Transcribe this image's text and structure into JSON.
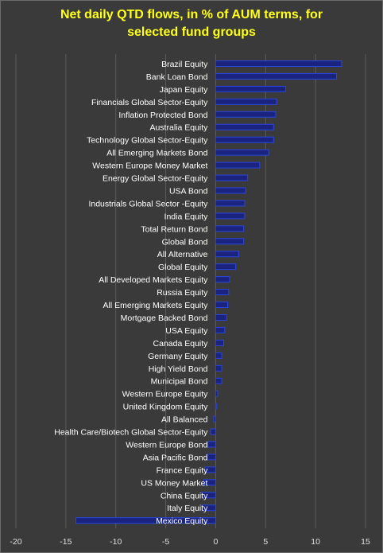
{
  "chart_data": {
    "type": "bar",
    "orientation": "horizontal",
    "title_line1": "Net daily QTD flows, in % of AUM terms, for",
    "title_line2": "selected fund groups",
    "xlabel": "",
    "ylabel": "",
    "xlim": [
      -20,
      15
    ],
    "x_ticks": [
      -20,
      -15,
      -10,
      -5,
      0,
      5,
      10,
      15
    ],
    "x_tick_labels": [
      "-20",
      "-15",
      "-10",
      "-5",
      "0",
      "5",
      "10",
      "15"
    ],
    "grid": "vertical",
    "legend": "none",
    "bar_color": "#1a237e",
    "bar_edge_color": "#2a45e0",
    "label_color": "#ffffff",
    "categories": [
      "Brazil Equity",
      "Bank Loan Bond",
      "Japan Equity",
      "Financials Global Sector-Equity",
      "Inflation Protected Bond",
      "Australia Equity",
      "Technology Global Sector-Equity",
      "All Emerging Markets Bond",
      "Western Europe Money Market",
      "Energy Global Sector-Equity",
      "USA Bond",
      "Industrials Global Sector -Equity",
      "India Equity",
      "Total Return Bond",
      "Global Bond",
      "All Alternative",
      "Global Equity",
      "All Developed Markets Equity",
      "Russia Equity",
      "All Emerging Markets Equity",
      "Mortgage Backed Bond",
      "USA Equity",
      "Canada Equity",
      "Germany Equity",
      "High Yield Bond",
      "Municipal Bond",
      "Western Europe Equity",
      "United Kingdom Equity",
      "All Balanced",
      "Health Care/Biotech Global Sector-Equity",
      "Western Europe Bond",
      "Asia Pacific Bond",
      "France Equity",
      "US Money Market",
      "China Equity",
      "Italy Equity",
      "Mexico Equity"
    ],
    "values": [
      12.6,
      12.1,
      7.0,
      6.1,
      6.0,
      5.8,
      5.8,
      5.3,
      4.4,
      3.2,
      3.0,
      2.9,
      2.9,
      2.8,
      2.8,
      2.3,
      2.0,
      1.4,
      1.3,
      1.2,
      1.1,
      0.9,
      0.8,
      0.6,
      0.6,
      0.6,
      0.2,
      0.1,
      -0.2,
      -0.5,
      -0.8,
      -0.9,
      -1.1,
      -1.2,
      -1.4,
      -1.4,
      -14.0
    ]
  }
}
